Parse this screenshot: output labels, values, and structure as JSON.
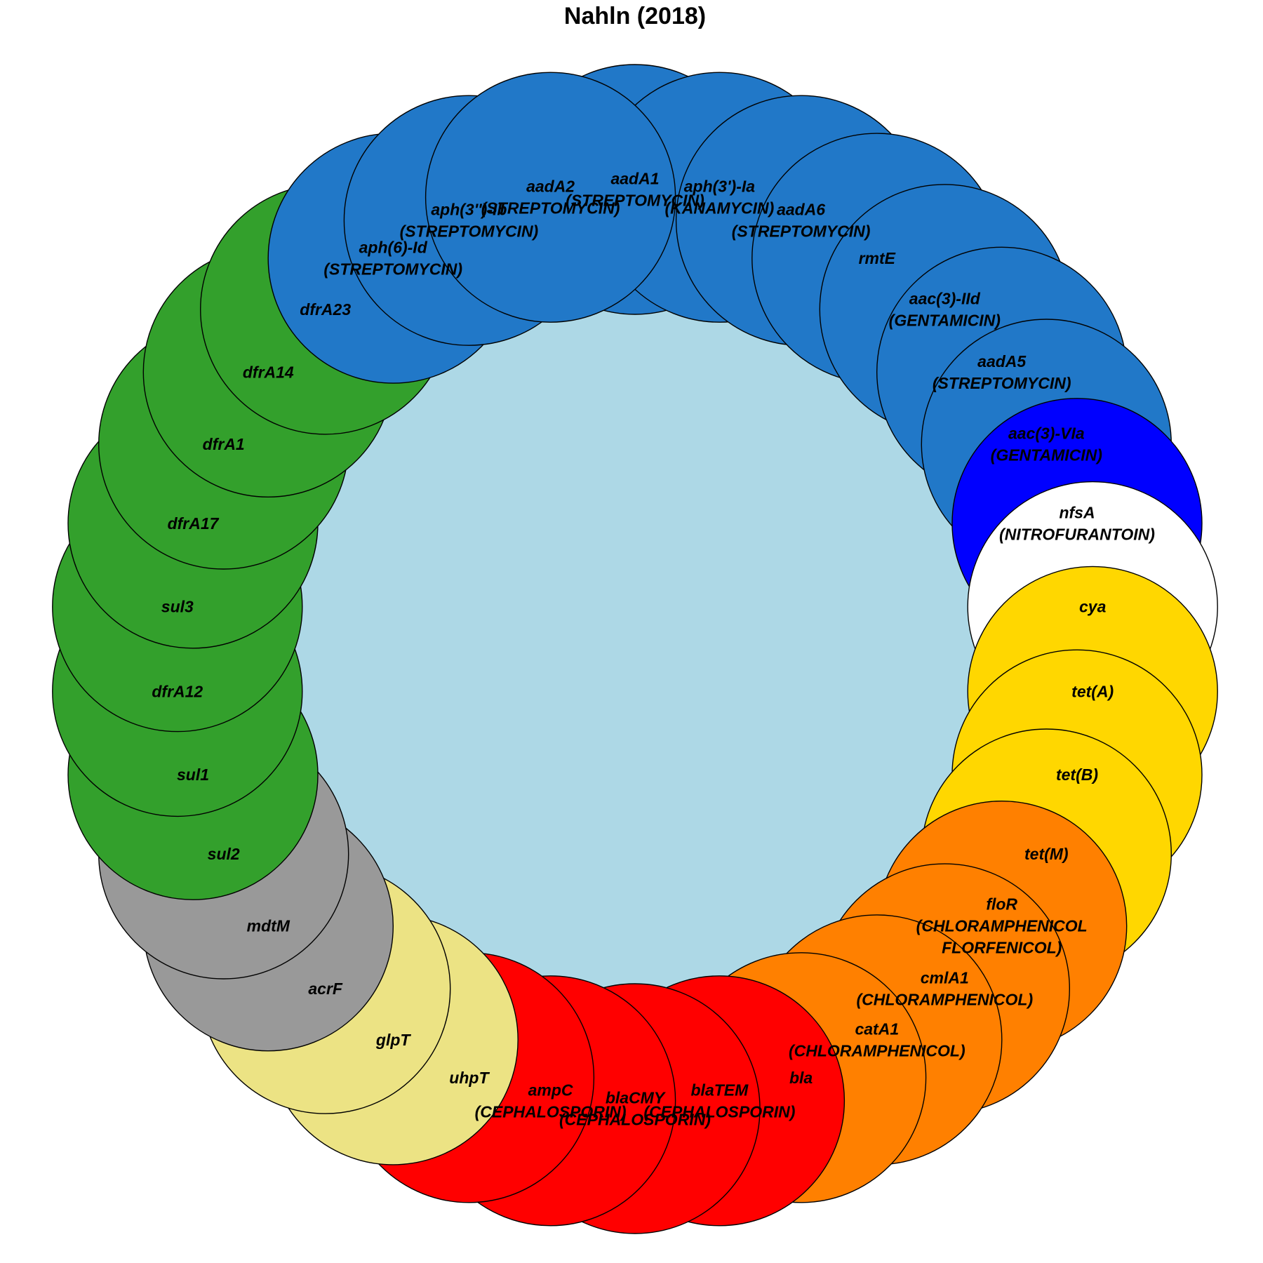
{
  "title": "Nahln (2018)",
  "colors": {
    "center": "#add8e6",
    "aminoglycoside": "#2178c8",
    "nitrofurantoin": "#0000ff",
    "tetracycline": "#ffd700",
    "phenicol": "#ff8000",
    "beta_lactam": "#ff0000",
    "phosphonic": "#ece384",
    "efflux": "#999999",
    "folate": "#33a02c",
    "unassigned": "#ffffff"
  },
  "genes": [
    {
      "name": "aadA1",
      "drug": "(STREPTOMYCIN)",
      "group": "aminoglycoside"
    },
    {
      "name": "aph(3')-Ia",
      "drug": "(KANAMYCIN)",
      "group": "aminoglycoside"
    },
    {
      "name": "aadA6",
      "drug": "(STREPTOMYCIN)",
      "group": "aminoglycoside"
    },
    {
      "name": "rmtE",
      "drug": "",
      "group": "aminoglycoside"
    },
    {
      "name": "aac(3)-IId",
      "drug": "(GENTAMICIN)",
      "group": "aminoglycoside"
    },
    {
      "name": "aadA5",
      "drug": "(STREPTOMYCIN)",
      "group": "aminoglycoside"
    },
    {
      "name": "aac(3)-VIa",
      "drug": "(GENTAMICIN)",
      "group": "aminoglycoside"
    },
    {
      "name": "nfsA",
      "drug": "(NITROFURANTOIN)",
      "group": "nitrofurantoin"
    },
    {
      "name": "cya",
      "drug": "",
      "group": "unassigned"
    },
    {
      "name": "tet(A)",
      "drug": "",
      "group": "tetracycline"
    },
    {
      "name": "tet(B)",
      "drug": "",
      "group": "tetracycline"
    },
    {
      "name": "tet(M)",
      "drug": "",
      "group": "tetracycline"
    },
    {
      "name": "floR",
      "drug": "(CHLORAMPHENICOL",
      "drug2": "FLORFENICOL)",
      "group": "phenicol"
    },
    {
      "name": "cmlA1",
      "drug": "(CHLORAMPHENICOL)",
      "group": "phenicol"
    },
    {
      "name": "catA1",
      "drug": "(CHLORAMPHENICOL)",
      "group": "phenicol"
    },
    {
      "name": "bla",
      "drug": "",
      "group": "phenicol"
    },
    {
      "name": "blaTEM",
      "drug": "(CEPHALOSPORIN)",
      "group": "beta_lactam"
    },
    {
      "name": "blaCMY",
      "drug": "(CEPHALOSPORIN)",
      "group": "beta_lactam"
    },
    {
      "name": "ampC",
      "drug": "(CEPHALOSPORIN)",
      "group": "beta_lactam"
    },
    {
      "name": "uhpT",
      "drug": "",
      "group": "beta_lactam"
    },
    {
      "name": "glpT",
      "drug": "",
      "group": "phosphonic"
    },
    {
      "name": "acrF",
      "drug": "",
      "group": "phosphonic"
    },
    {
      "name": "mdtM",
      "drug": "",
      "group": "efflux"
    },
    {
      "name": "sul2",
      "drug": "",
      "group": "efflux"
    },
    {
      "name": "sul1",
      "drug": "",
      "group": "folate"
    },
    {
      "name": "dfrA12",
      "drug": "",
      "group": "folate"
    },
    {
      "name": "sul3",
      "drug": "",
      "group": "folate"
    },
    {
      "name": "dfrA17",
      "drug": "",
      "group": "folate"
    },
    {
      "name": "dfrA1",
      "drug": "",
      "group": "folate"
    },
    {
      "name": "dfrA14",
      "drug": "",
      "group": "folate"
    },
    {
      "name": "dfrA23",
      "drug": "",
      "group": "folate"
    },
    {
      "name": "aph(6)-Id",
      "drug": "(STREPTOMYCIN)",
      "group": "aminoglycoside"
    },
    {
      "name": "aph(3'')-Ib",
      "drug": "(STREPTOMYCIN)",
      "group": "aminoglycoside"
    },
    {
      "name": "aadA2",
      "drug": "(STREPTOMYCIN)",
      "group": "aminoglycoside"
    }
  ]
}
